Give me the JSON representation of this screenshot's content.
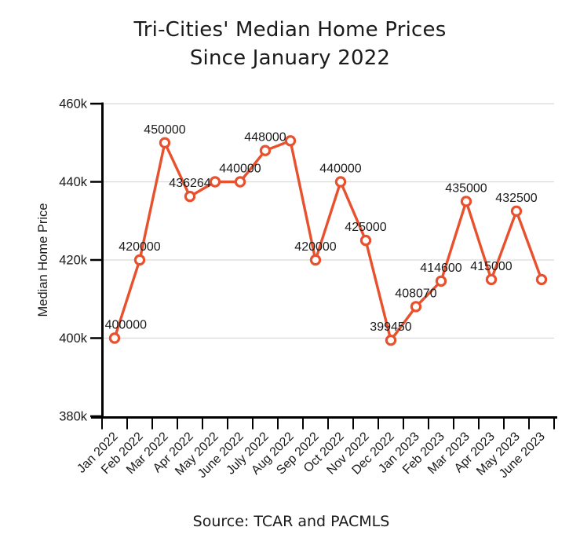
{
  "title": {
    "line1": "Tri-Cities' Median Home Prices",
    "line2": "Since January 2022"
  },
  "source": "Source: TCAR and PACMLS",
  "chart_data": {
    "type": "line",
    "title": "Tri-Cities' Median Home Prices Since January 2022",
    "xlabel": "",
    "ylabel": "Median Home Price",
    "ylim": [
      380000,
      460000
    ],
    "grid": "horizontal-light-gray",
    "legend": "none",
    "line_color": "#e8512e",
    "marker_fill": "#ffffff",
    "axis_color": "#000000",
    "grid_color": "#d9d9d9",
    "text_color": "#1a1a1a",
    "y_ticks": [
      {
        "label": "460k",
        "value": 460000
      },
      {
        "label": "440k",
        "value": 440000
      },
      {
        "label": "420k",
        "value": 420000
      },
      {
        "label": "400k",
        "value": 400000
      },
      {
        "label": "380k",
        "value": 380000
      }
    ],
    "categories": [
      "Jan 2022",
      "Feb 2022",
      "Mar 2022",
      "Apr 2022",
      "May 2022",
      "June 2022",
      "July 2022",
      "Aug 2022",
      "Sep 2022",
      "Oct 2022",
      "Nov 2022",
      "Dec 2022",
      "Jan 2023",
      "Feb 2023",
      "Mar 2023",
      "Apr 2023",
      "May 2023",
      "June 2023"
    ],
    "values": [
      400000,
      420000,
      450000,
      436264,
      440000,
      440000,
      448000,
      450500,
      420000,
      440000,
      425000,
      399450,
      408070,
      414600,
      435000,
      415000,
      432500,
      415000
    ],
    "point_labels": [
      "400000",
      "420000",
      "450000",
      "436264",
      "",
      "440000",
      "448000",
      "",
      "420000",
      "440000",
      "425000",
      "399450",
      "408070",
      "414600",
      "435000",
      "415000",
      "432500",
      ""
    ]
  }
}
